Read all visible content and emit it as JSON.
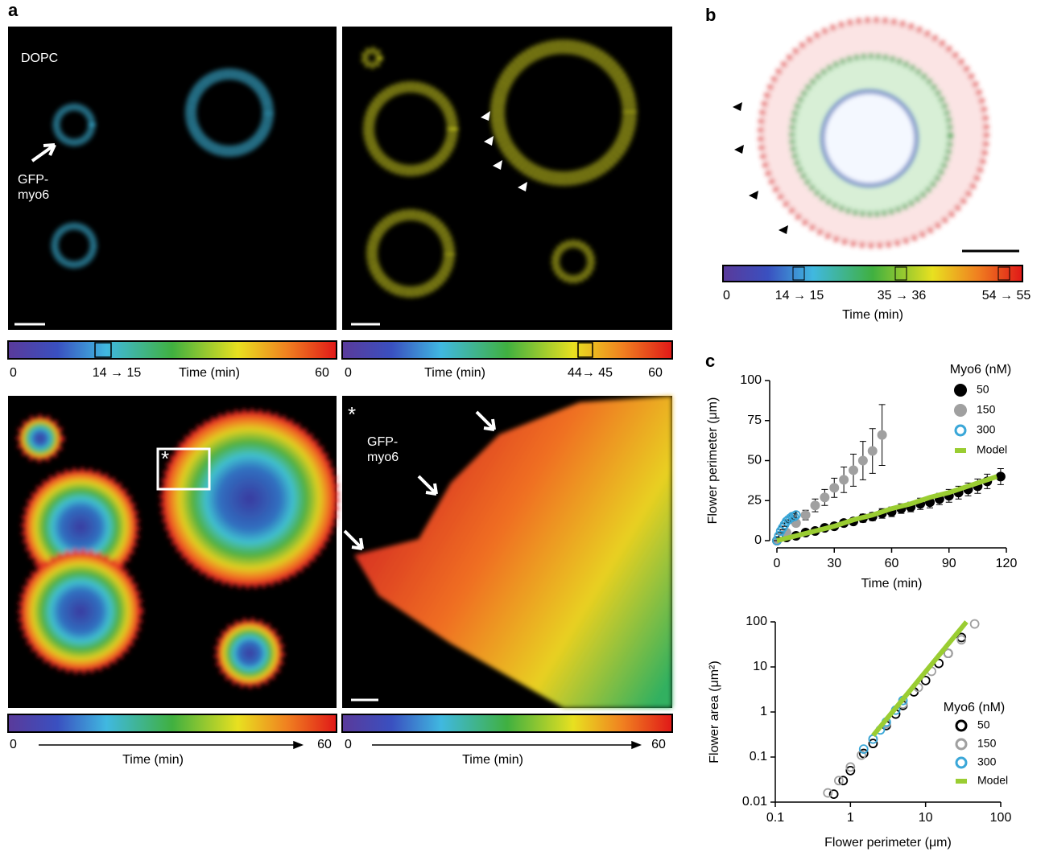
{
  "panel_labels": {
    "a": "a",
    "b": "b",
    "c": "c"
  },
  "panel_a": {
    "dopc": "DOPC",
    "gfp_myo6_top": [
      "GFP-",
      "myo6"
    ],
    "gfp_myo6_zoom": [
      "GFP-",
      "myo6"
    ],
    "asterisk_box": "*",
    "asterisk_zoom": "*",
    "colorbars": [
      {
        "start": "0",
        "mark": "14 → 15",
        "title": "Time (min)",
        "end": "60"
      },
      {
        "start": "0",
        "title": "Time (min)",
        "mark": "44→ 45",
        "end": "60"
      },
      {
        "start": "0",
        "title": "Time (min)",
        "end": "60"
      },
      {
        "start": "0",
        "title": "Time (min)",
        "end": "60"
      }
    ]
  },
  "panel_b": {
    "colorbar": {
      "labels": [
        "0",
        "14 → 15",
        "35 → 36",
        "54 → 55"
      ],
      "title": "Time (min)"
    }
  },
  "chart_data": [
    {
      "type": "line",
      "x_label": "Time (min)",
      "y_label": "Flower perimeter (μm)",
      "xlim": [
        0,
        120
      ],
      "xticks": [
        0,
        30,
        60,
        90,
        120
      ],
      "ylim": [
        0,
        100
      ],
      "yticks": [
        0,
        25,
        50,
        75,
        100
      ],
      "legend_title": "Myo6 (nM)",
      "legend_position": "upper right",
      "series": [
        {
          "name": "50",
          "color": "#000000",
          "marker": "filled",
          "x": [
            0,
            5,
            10,
            15,
            20,
            25,
            30,
            35,
            40,
            45,
            50,
            55,
            60,
            65,
            70,
            75,
            80,
            85,
            90,
            95,
            100,
            105,
            110,
            117
          ],
          "values": [
            0,
            2,
            3,
            5,
            6,
            8,
            9,
            11,
            12,
            14,
            15,
            17,
            18,
            20,
            21,
            23,
            24,
            26,
            28,
            30,
            32,
            34,
            37,
            40
          ],
          "errors": [
            0,
            0.5,
            1,
            1,
            1.5,
            1.5,
            2,
            2,
            2,
            2.5,
            2.5,
            3,
            3,
            3,
            3,
            3.5,
            3.5,
            3.5,
            4,
            4,
            4,
            4.5,
            4.5,
            5
          ]
        },
        {
          "name": "150",
          "color": "#a0a0a0",
          "marker": "filled",
          "x": [
            0,
            5,
            10,
            15,
            20,
            25,
            30,
            35,
            40,
            45,
            50,
            55
          ],
          "values": [
            0,
            5,
            11,
            16,
            22,
            27,
            33,
            38,
            44,
            50,
            56,
            66
          ],
          "errors": [
            0,
            1,
            2,
            3,
            4,
            5,
            6,
            8,
            10,
            12,
            14,
            19
          ]
        },
        {
          "name": "300",
          "color": "#3aa7d8",
          "marker": "open",
          "x": [
            0,
            1,
            2,
            3,
            4,
            5,
            6,
            7,
            8,
            9,
            10
          ],
          "values": [
            0,
            3,
            6,
            8,
            10,
            12,
            13,
            14,
            15,
            15,
            16
          ],
          "errors": [
            0,
            1,
            1,
            1,
            1,
            1,
            2,
            2,
            2,
            2,
            2
          ]
        },
        {
          "name": "Model",
          "color": "#9acd32",
          "marker": "line",
          "x": [
            0,
            10,
            20,
            30,
            40,
            50,
            60,
            70,
            80,
            90,
            100,
            110,
            115
          ],
          "values": [
            0,
            3,
            6,
            9,
            13,
            16,
            20,
            23,
            27,
            30,
            34,
            38,
            40
          ]
        }
      ]
    },
    {
      "type": "scatter",
      "x_label": "Flower perimeter (μm)",
      "y_label": "Flower area (μm²)",
      "log_scale": true,
      "xlim": [
        0.1,
        100
      ],
      "xticks": [
        0.1,
        1,
        10,
        100
      ],
      "ylim": [
        0.01,
        100
      ],
      "yticks": [
        0.01,
        0.1,
        1,
        10,
        100
      ],
      "legend_title": "Myo6 (nM)",
      "legend_position": "lower right",
      "series": [
        {
          "name": "50",
          "color": "#000000",
          "marker": "open",
          "x": [
            0.6,
            0.8,
            1,
            1.5,
            2,
            3,
            4,
            5,
            7,
            10,
            15,
            20,
            30
          ],
          "values": [
            0.015,
            0.03,
            0.05,
            0.12,
            0.2,
            0.5,
            0.9,
            1.4,
            2.8,
            5,
            12,
            20,
            45
          ]
        },
        {
          "name": "150",
          "color": "#a0a0a0",
          "marker": "open",
          "x": [
            0.5,
            0.7,
            1,
            1.4,
            2,
            3,
            5,
            8,
            12,
            20,
            30,
            45
          ],
          "values": [
            0.016,
            0.03,
            0.06,
            0.11,
            0.25,
            0.55,
            1.5,
            3.5,
            8,
            20,
            40,
            90
          ]
        },
        {
          "name": "300",
          "color": "#3aa7d8",
          "marker": "open",
          "x": [
            1.5,
            2,
            2.5,
            3,
            4,
            5
          ],
          "values": [
            0.15,
            0.25,
            0.4,
            0.6,
            1.1,
            1.8
          ]
        },
        {
          "name": "Model",
          "color": "#9acd32",
          "marker": "line",
          "x": [
            2,
            35
          ],
          "values": [
            0.3,
            100
          ]
        }
      ]
    }
  ]
}
